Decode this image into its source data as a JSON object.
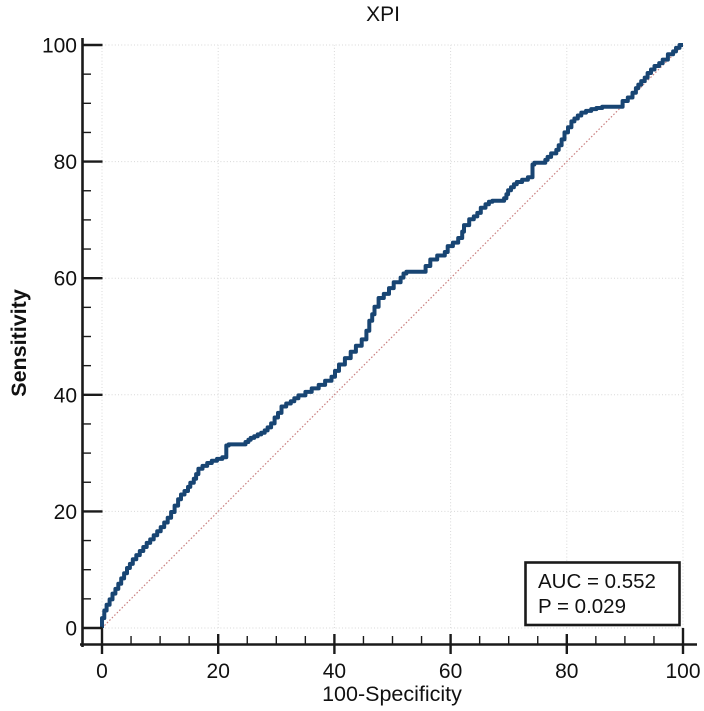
{
  "figure": {
    "title": "XPI",
    "x_axis_label": "100-Specificity",
    "y_axis_label": "Sensitivity"
  },
  "chart_data": {
    "type": "line",
    "subtype": "roc-curve",
    "title": "XPI",
    "xlabel": "100-Specificity",
    "ylabel": "Sensitivity",
    "xlim": [
      0,
      100
    ],
    "ylim": [
      0,
      100
    ],
    "x_major_ticks": [
      0,
      20,
      40,
      60,
      80,
      100
    ],
    "y_major_ticks": [
      0,
      20,
      40,
      60,
      80,
      100
    ],
    "minor_tick_interval": 5,
    "grid": true,
    "legend_position": "none",
    "annotations": [
      "AUC = 0.552",
      "P = 0.029"
    ],
    "stats": {
      "AUC": 0.552,
      "P": 0.029
    },
    "colors": {
      "roc_curve": "#184573",
      "reference_line": "#c97f7f",
      "gridline": "#d8d8d8",
      "axis": "#1a1a1a",
      "background": "#ffffff"
    },
    "series": [
      {
        "name": "ROC curve",
        "style": "step",
        "color": "#184573",
        "points": [
          [
            0,
            0
          ],
          [
            0.4,
            1.7
          ],
          [
            0.8,
            3
          ],
          [
            1.3,
            4
          ],
          [
            1.8,
            4.9
          ],
          [
            2.3,
            5.9
          ],
          [
            2.8,
            6.7
          ],
          [
            3.3,
            7.6
          ],
          [
            3.8,
            8.5
          ],
          [
            4.3,
            9.4
          ],
          [
            4.8,
            10.3
          ],
          [
            5.3,
            11
          ],
          [
            5.9,
            11.8
          ],
          [
            6.5,
            12.5
          ],
          [
            7.1,
            13.2
          ],
          [
            7.7,
            13.9
          ],
          [
            8.3,
            14.6
          ],
          [
            8.9,
            15.2
          ],
          [
            9.5,
            15.9
          ],
          [
            10.1,
            16.6
          ],
          [
            10.7,
            17.3
          ],
          [
            11.3,
            18.1
          ],
          [
            11.9,
            18.9
          ],
          [
            12.5,
            19.9
          ],
          [
            13.1,
            21
          ],
          [
            13.6,
            22.1
          ],
          [
            14.2,
            22.9
          ],
          [
            14.8,
            23.5
          ],
          [
            15.2,
            24.2
          ],
          [
            15.8,
            24.9
          ],
          [
            16.2,
            25.6
          ],
          [
            16.6,
            26.4
          ],
          [
            17.3,
            27.3
          ],
          [
            18.1,
            27.8
          ],
          [
            18.9,
            28.3
          ],
          [
            19.8,
            28.7
          ],
          [
            20.7,
            29
          ],
          [
            21.4,
            29.3
          ],
          [
            21.8,
            31.3
          ],
          [
            24.7,
            31.5
          ],
          [
            25.2,
            31.9
          ],
          [
            25.6,
            32.3
          ],
          [
            26.2,
            32.6
          ],
          [
            26.8,
            32.9
          ],
          [
            27.4,
            33.2
          ],
          [
            28,
            33.5
          ],
          [
            28.5,
            33.9
          ],
          [
            29.1,
            34.4
          ],
          [
            29.7,
            35.1
          ],
          [
            30.3,
            36.1
          ],
          [
            30.9,
            36.9
          ],
          [
            31.7,
            38
          ],
          [
            32.5,
            38.5
          ],
          [
            33.1,
            38.9
          ],
          [
            33.8,
            39.4
          ],
          [
            35,
            39.9
          ],
          [
            36.1,
            40.5
          ],
          [
            37.3,
            41.1
          ],
          [
            38.4,
            41.7
          ],
          [
            39.5,
            42.4
          ],
          [
            40.1,
            43.1
          ],
          [
            40.8,
            44.1
          ],
          [
            41.8,
            45.2
          ],
          [
            42.8,
            46.3
          ],
          [
            43.7,
            47.4
          ],
          [
            44.7,
            48.4
          ],
          [
            45.5,
            49.5
          ],
          [
            46,
            51
          ],
          [
            46.5,
            52.7
          ],
          [
            46.9,
            53.8
          ],
          [
            47.6,
            55.1
          ],
          [
            48.5,
            56.6
          ],
          [
            49.4,
            57.3
          ],
          [
            50.2,
            58.3
          ],
          [
            51.4,
            59.3
          ],
          [
            51.9,
            60.1
          ],
          [
            52.4,
            60.8
          ],
          [
            55.7,
            61.1
          ],
          [
            56.5,
            62.1
          ],
          [
            57.7,
            63.2
          ],
          [
            59,
            63.9
          ],
          [
            59.5,
            64.5
          ],
          [
            60.4,
            65.5
          ],
          [
            61.3,
            66.1
          ],
          [
            62,
            66.9
          ],
          [
            62.3,
            68
          ],
          [
            63.2,
            69.1
          ],
          [
            64,
            70.1
          ],
          [
            64.6,
            70.6
          ],
          [
            65.2,
            71.2
          ],
          [
            66,
            72.1
          ],
          [
            66.6,
            72.7
          ],
          [
            67.2,
            73.1
          ],
          [
            69.2,
            73.3
          ],
          [
            69.6,
            73.7
          ],
          [
            69.9,
            74.4
          ],
          [
            70.4,
            75.1
          ],
          [
            70.9,
            75.6
          ],
          [
            71.4,
            76.1
          ],
          [
            72.3,
            76.5
          ],
          [
            73.3,
            76.9
          ],
          [
            74.1,
            77.3
          ],
          [
            74.4,
            79.5
          ],
          [
            76.3,
            79.8
          ],
          [
            76.7,
            80.3
          ],
          [
            77.3,
            80.8
          ],
          [
            78.2,
            81.4
          ],
          [
            78.6,
            82
          ],
          [
            79.1,
            82.8
          ],
          [
            79.6,
            83.8
          ],
          [
            80.2,
            85
          ],
          [
            80.8,
            85.9
          ],
          [
            81.3,
            86.9
          ],
          [
            81.9,
            87.4
          ],
          [
            82.5,
            87.9
          ],
          [
            83.3,
            88.4
          ],
          [
            84.2,
            88.7
          ],
          [
            85.1,
            89
          ],
          [
            86.1,
            89.2
          ],
          [
            89.6,
            89.4
          ],
          [
            90.5,
            90.4
          ],
          [
            91.3,
            91
          ],
          [
            91.9,
            91.8
          ],
          [
            92.3,
            92.6
          ],
          [
            92.8,
            93.2
          ],
          [
            93.4,
            93.8
          ],
          [
            93.9,
            94.4
          ],
          [
            94.5,
            95.2
          ],
          [
            95.1,
            95.8
          ],
          [
            95.9,
            96.4
          ],
          [
            96.5,
            96.9
          ],
          [
            97.4,
            97.5
          ],
          [
            98.3,
            98.4
          ],
          [
            98.8,
            98.9
          ],
          [
            99.4,
            99.5
          ],
          [
            100,
            100
          ]
        ]
      },
      {
        "name": "Reference diagonal",
        "style": "dotted-line",
        "color": "#c97f7f",
        "points": [
          [
            0,
            0
          ],
          [
            100,
            100
          ]
        ]
      }
    ]
  }
}
